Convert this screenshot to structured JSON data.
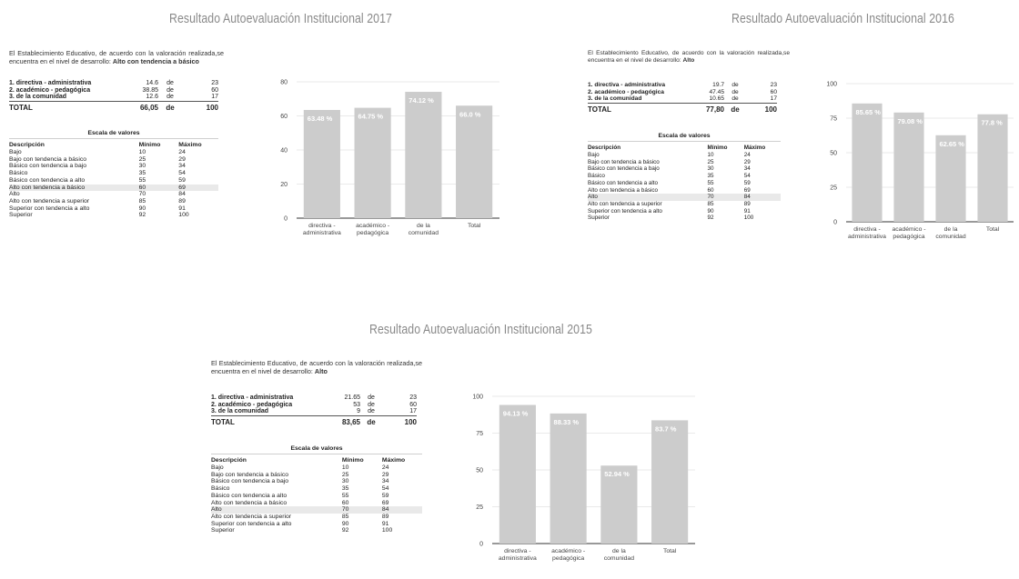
{
  "panels": [
    {
      "title": "Resultado Autoevaluación Institucional 2017",
      "intro_text": "El Establecimiento Educativo, de acuerdo con la valoración realizada,se encuentra en el nivel de desarrollo:",
      "level": "Alto con tendencia a básico",
      "scores": [
        {
          "name": "1. directiva - administrativa",
          "value": "14.6",
          "de": "de",
          "max": "23"
        },
        {
          "name": "2. académico - pedagógica",
          "value": "38.85",
          "de": "de",
          "max": "60"
        },
        {
          "name": "3. de la comunidad",
          "value": "12.6",
          "de": "de",
          "max": "17"
        }
      ],
      "total": {
        "label": "TOTAL",
        "value": "66,05",
        "de": "de",
        "max": "100"
      },
      "highlight_row": 5
    },
    {
      "title": "Resultado Autoevaluación Institucional 2016",
      "intro_text": "El Establecimiento Educativo, de acuerdo con la valoración realizada,se encuentra en el nivel de desarrollo:",
      "level": "Alto",
      "scores": [
        {
          "name": "1. directiva - administrativa",
          "value": "19.7",
          "de": "de",
          "max": "23"
        },
        {
          "name": "2. académico - pedagógica",
          "value": "47.45",
          "de": "de",
          "max": "60"
        },
        {
          "name": "3. de la comunidad",
          "value": "10.65",
          "de": "de",
          "max": "17"
        }
      ],
      "total": {
        "label": "TOTAL",
        "value": "77,80",
        "de": "de",
        "max": "100"
      },
      "highlight_row": 6
    },
    {
      "title": "Resultado Autoevaluación Institucional 2015",
      "intro_text": "El Establecimiento Educativo, de acuerdo con la valoración realizada,se encuentra en el nivel de desarrollo:",
      "level": "Alto",
      "scores": [
        {
          "name": "1. directiva - administrativa",
          "value": "21.65",
          "de": "de",
          "max": "23"
        },
        {
          "name": "2. académico - pedagógica",
          "value": "53",
          "de": "de",
          "max": "60"
        },
        {
          "name": "3. de la comunidad",
          "value": "9",
          "de": "de",
          "max": "17"
        }
      ],
      "total": {
        "label": "TOTAL",
        "value": "83,65",
        "de": "de",
        "max": "100"
      },
      "highlight_row": 6
    }
  ],
  "scale": {
    "title": "Escala de valores",
    "headers": [
      "Descripción",
      "Mínimo",
      "Máximo"
    ],
    "rows": [
      [
        "Bajo",
        "10",
        "24"
      ],
      [
        "Bajo con tendencia a básico",
        "25",
        "29"
      ],
      [
        "Básico con tendencia a bajo",
        "30",
        "34"
      ],
      [
        "Básico",
        "35",
        "54"
      ],
      [
        "Básico con tendencia a alto",
        "55",
        "59"
      ],
      [
        "Alto con tendencia a básico",
        "60",
        "69"
      ],
      [
        "Alto",
        "70",
        "84"
      ],
      [
        "Alto con tendencia a superior",
        "85",
        "89"
      ],
      [
        "Superior con tendencia a alto",
        "90",
        "91"
      ],
      [
        "Superior",
        "92",
        "100"
      ]
    ]
  },
  "colors": {
    "bar": "#cccccc",
    "grid": "#e3e3e3",
    "axis": "#333333",
    "label": "#ffffff",
    "title": "#8a8a8a"
  },
  "chart_data": [
    {
      "type": "bar",
      "title": "",
      "categories": [
        [
          "directiva -",
          "administrativa"
        ],
        [
          "académico -",
          "pedagógica"
        ],
        [
          "de la",
          "comunidad"
        ],
        [
          "Total"
        ]
      ],
      "values": [
        63.48,
        64.75,
        74.12,
        66.0
      ],
      "data_labels": [
        "63.48 %",
        "64.75 %",
        "74.12 %",
        "66.0 %"
      ],
      "ylim": [
        0,
        80
      ],
      "yticks": [
        0,
        20,
        40,
        60,
        80
      ],
      "grid": true
    },
    {
      "type": "bar",
      "title": "",
      "categories": [
        [
          "directiva -",
          "administrativa"
        ],
        [
          "académico -",
          "pedagógica"
        ],
        [
          "de la",
          "comunidad"
        ],
        [
          "Total"
        ]
      ],
      "values": [
        85.65,
        79.08,
        62.65,
        77.8
      ],
      "data_labels": [
        "85.65 %",
        "79.08 %",
        "62.65 %",
        "77.8 %"
      ],
      "ylim": [
        0,
        100
      ],
      "yticks": [
        0,
        25,
        50,
        75,
        100
      ],
      "grid": true
    },
    {
      "type": "bar",
      "title": "",
      "categories": [
        [
          "directiva -",
          "administrativa"
        ],
        [
          "académico -",
          "pedagógica"
        ],
        [
          "de la",
          "comunidad"
        ],
        [
          "Total"
        ]
      ],
      "values": [
        94.13,
        88.33,
        52.94,
        83.7
      ],
      "data_labels": [
        "94.13 %",
        "88.33 %",
        "52.94 %",
        "83.7 %"
      ],
      "ylim": [
        0,
        100
      ],
      "yticks": [
        0,
        25,
        50,
        75,
        100
      ],
      "grid": true
    }
  ]
}
